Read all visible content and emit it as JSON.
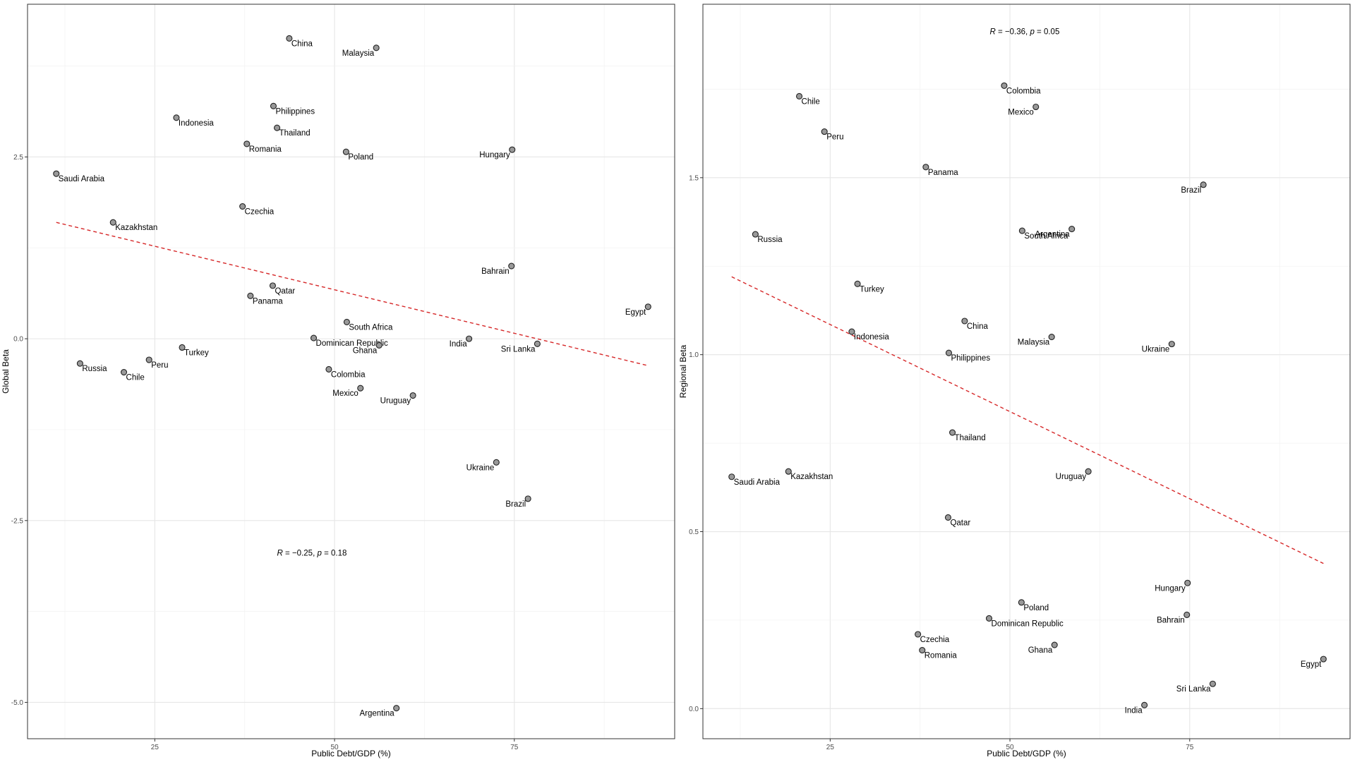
{
  "chart_data": [
    {
      "type": "scatter",
      "xlabel": "Public Debt/GDP (%)",
      "ylabel": "Global Beta",
      "xlim": [
        7.3,
        97.3
      ],
      "ylim": [
        -5.5,
        4.6
      ],
      "xticks": [
        25,
        50,
        75
      ],
      "yticks": [
        -5.0,
        -2.5,
        0.0,
        2.5
      ],
      "ytick_labels": [
        "-5.0",
        "-2.5",
        "0.0",
        "2.5"
      ],
      "grid": true,
      "annotation": {
        "r_label": "R",
        "r_value": "= −0.25,",
        "p_label": "p",
        "p_value": "= 0.18",
        "x": 42.0,
        "y": -2.98
      },
      "trend": {
        "x": [
          11.3,
          93.6
        ],
        "y": [
          1.6,
          -0.37
        ],
        "color": "#d62728"
      },
      "points": [
        {
          "label": "China",
          "x": 43.7,
          "y": 4.13
        },
        {
          "label": "Malaysia",
          "x": 55.8,
          "y": 4.0
        },
        {
          "label": "Philippines",
          "x": 41.5,
          "y": 3.2
        },
        {
          "label": "Indonesia",
          "x": 28.0,
          "y": 3.04
        },
        {
          "label": "Thailand",
          "x": 42.0,
          "y": 2.9
        },
        {
          "label": "Romania",
          "x": 37.8,
          "y": 2.68
        },
        {
          "label": "Poland",
          "x": 51.6,
          "y": 2.57
        },
        {
          "label": "Hungary",
          "x": 74.7,
          "y": 2.6
        },
        {
          "label": "Saudi Arabia",
          "x": 11.3,
          "y": 2.27
        },
        {
          "label": "Czechia",
          "x": 37.2,
          "y": 1.82
        },
        {
          "label": "Kazakhstan",
          "x": 19.2,
          "y": 1.6
        },
        {
          "label": "Bahrain",
          "x": 74.6,
          "y": 1.0
        },
        {
          "label": "Qatar",
          "x": 41.4,
          "y": 0.73
        },
        {
          "label": "Panama",
          "x": 38.3,
          "y": 0.59
        },
        {
          "label": "Egypt",
          "x": 93.6,
          "y": 0.44
        },
        {
          "label": "South Africa",
          "x": 51.7,
          "y": 0.23
        },
        {
          "label": "Dominican Republic",
          "x": 47.1,
          "y": 0.01
        },
        {
          "label": "India",
          "x": 68.7,
          "y": 0.0
        },
        {
          "label": "Ghana",
          "x": 56.2,
          "y": -0.09
        },
        {
          "label": "Sri Lanka",
          "x": 78.2,
          "y": -0.07
        },
        {
          "label": "Turkey",
          "x": 28.8,
          "y": -0.12
        },
        {
          "label": "Peru",
          "x": 24.2,
          "y": -0.29
        },
        {
          "label": "Russia",
          "x": 14.6,
          "y": -0.34
        },
        {
          "label": "Chile",
          "x": 20.7,
          "y": -0.46
        },
        {
          "label": "Colombia",
          "x": 49.2,
          "y": -0.42
        },
        {
          "label": "Mexico",
          "x": 53.6,
          "y": -0.68
        },
        {
          "label": "Uruguay",
          "x": 60.9,
          "y": -0.78
        },
        {
          "label": "Ukraine",
          "x": 72.5,
          "y": -1.7
        },
        {
          "label": "Brazil",
          "x": 76.9,
          "y": -2.2
        },
        {
          "label": "Argentina",
          "x": 58.6,
          "y": -5.08
        }
      ]
    },
    {
      "type": "scatter",
      "xlabel": "Public Debt/GDP (%)",
      "ylabel": "Regional Beta",
      "xlim": [
        7.3,
        97.3
      ],
      "ylim": [
        -0.085,
        1.99
      ],
      "xticks": [
        25,
        50,
        75
      ],
      "yticks": [
        0.0,
        0.5,
        1.0,
        1.5
      ],
      "ytick_labels": [
        "0.0",
        "0.5",
        "1.0",
        "1.5"
      ],
      "grid": true,
      "annotation": {
        "r_label": "R",
        "r_value": "= −0.36,",
        "p_label": "p",
        "p_value": "= 0.05",
        "x": 47.2,
        "y": 1.905
      },
      "trend": {
        "x": [
          11.3,
          93.6
        ],
        "y": [
          1.22,
          0.41
        ],
        "color": "#d62728"
      },
      "points": [
        {
          "label": "Colombia",
          "x": 49.2,
          "y": 1.76
        },
        {
          "label": "Chile",
          "x": 20.7,
          "y": 1.73
        },
        {
          "label": "Mexico",
          "x": 53.6,
          "y": 1.7
        },
        {
          "label": "Peru",
          "x": 24.2,
          "y": 1.63
        },
        {
          "label": "Panama",
          "x": 38.3,
          "y": 1.53
        },
        {
          "label": "Brazil",
          "x": 76.9,
          "y": 1.48
        },
        {
          "label": "South Africa",
          "x": 51.7,
          "y": 1.35
        },
        {
          "label": "Argentina",
          "x": 58.6,
          "y": 1.355
        },
        {
          "label": "Russia",
          "x": 14.6,
          "y": 1.34
        },
        {
          "label": "Turkey",
          "x": 28.8,
          "y": 1.2
        },
        {
          "label": "China",
          "x": 43.7,
          "y": 1.095
        },
        {
          "label": "Indonesia",
          "x": 28.0,
          "y": 1.065
        },
        {
          "label": "Malaysia",
          "x": 55.8,
          "y": 1.05
        },
        {
          "label": "Ukraine",
          "x": 72.5,
          "y": 1.03
        },
        {
          "label": "Philippines",
          "x": 41.5,
          "y": 1.005
        },
        {
          "label": "Thailand",
          "x": 42.0,
          "y": 0.78
        },
        {
          "label": "Uruguay",
          "x": 60.9,
          "y": 0.67
        },
        {
          "label": "Kazakhstan",
          "x": 19.2,
          "y": 0.67
        },
        {
          "label": "Saudi Arabia",
          "x": 11.3,
          "y": 0.655
        },
        {
          "label": "Qatar",
          "x": 41.4,
          "y": 0.54
        },
        {
          "label": "Hungary",
          "x": 74.7,
          "y": 0.355
        },
        {
          "label": "Poland",
          "x": 51.6,
          "y": 0.3
        },
        {
          "label": "Bahrain",
          "x": 74.6,
          "y": 0.265
        },
        {
          "label": "Dominican Republic",
          "x": 47.1,
          "y": 0.255
        },
        {
          "label": "Czechia",
          "x": 37.2,
          "y": 0.21
        },
        {
          "label": "Ghana",
          "x": 56.2,
          "y": 0.18
        },
        {
          "label": "Romania",
          "x": 37.8,
          "y": 0.165
        },
        {
          "label": "Egypt",
          "x": 93.6,
          "y": 0.14
        },
        {
          "label": "Sri Lanka",
          "x": 78.2,
          "y": 0.07
        },
        {
          "label": "India",
          "x": 68.7,
          "y": 0.01
        }
      ]
    }
  ]
}
